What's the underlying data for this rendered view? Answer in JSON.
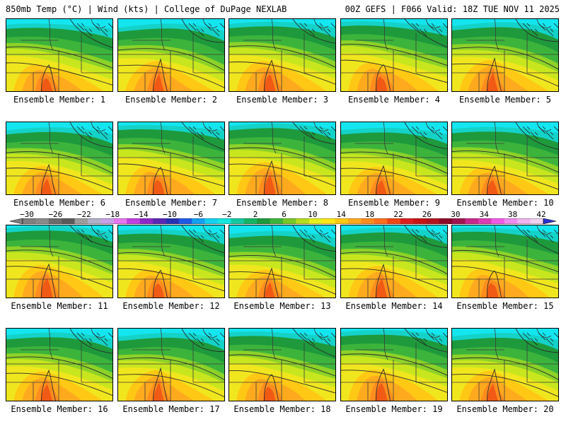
{
  "header": {
    "left": "850mb Temp (°C) | Wind (kts) | College of DuPage NEXLAB",
    "right": "00Z GEFS | F066 Valid: 18Z TUE NOV 11 2025"
  },
  "panels": [
    {
      "label": "Ensemble Member: 1"
    },
    {
      "label": "Ensemble Member: 2"
    },
    {
      "label": "Ensemble Member: 3"
    },
    {
      "label": "Ensemble Member: 4"
    },
    {
      "label": "Ensemble Member: 5"
    },
    {
      "label": "Ensemble Member: 6"
    },
    {
      "label": "Ensemble Member: 7"
    },
    {
      "label": "Ensemble Member: 8"
    },
    {
      "label": "Ensemble Member: 9"
    },
    {
      "label": "Ensemble Member: 10"
    },
    {
      "label": "Ensemble Member: 11"
    },
    {
      "label": "Ensemble Member: 12"
    },
    {
      "label": "Ensemble Member: 13"
    },
    {
      "label": "Ensemble Member: 14"
    },
    {
      "label": "Ensemble Member: 15"
    },
    {
      "label": "Ensemble Member: 16"
    },
    {
      "label": "Ensemble Member: 17"
    },
    {
      "label": "Ensemble Member: 18"
    },
    {
      "label": "Ensemble Member: 19"
    },
    {
      "label": "Ensemble Member: 20"
    }
  ],
  "colorbar": {
    "labels": [
      "−30",
      "−26",
      "−22",
      "−18",
      "−14",
      "−10",
      "−6",
      "−2",
      "2",
      "6",
      "10",
      "14",
      "18",
      "22",
      "26",
      "30",
      "34",
      "38",
      "42"
    ],
    "colors": [
      "#7f7f7f",
      "#8a8a8a",
      "#6c6c6c",
      "#5a5a5a",
      "#9c9c9c",
      "#b0b0c8",
      "#c8a0e6",
      "#e678f0",
      "#c040e0",
      "#8c28c8",
      "#5a28b4",
      "#2832b4",
      "#1e5ae6",
      "#14a0f0",
      "#14d2f0",
      "#14e6dc",
      "#14c8a0",
      "#14b464",
      "#1e9a3c",
      "#3cb43c",
      "#78c828",
      "#b4dc1e",
      "#e6f01e",
      "#ffe614",
      "#ffc814",
      "#ffaa1e",
      "#ff8c1e",
      "#ff6e1e",
      "#f04614",
      "#dc1e1e",
      "#c81414",
      "#b4141e",
      "#8c0a28",
      "#a01450",
      "#c8288c",
      "#dc3cb4",
      "#f05ae6",
      "#f08cf0",
      "#f0b4f0",
      "#f0d2f0"
    ]
  },
  "palette": {
    "cyan": "#14e6f0",
    "aqua": "#14d2c8",
    "dkgreen": "#1e9a3c",
    "green": "#3cb43c",
    "ltgreen": "#8cd228",
    "yellowgreen": "#c8e61e",
    "yellow": "#f0e61e",
    "gold": "#ffc814",
    "orange": "#ffaa1e",
    "dkorange": "#ff8c1e",
    "red": "#f05a14"
  }
}
